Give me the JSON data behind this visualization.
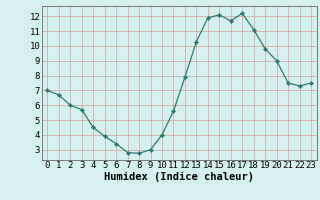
{
  "x": [
    0,
    1,
    2,
    3,
    4,
    5,
    6,
    7,
    8,
    9,
    10,
    11,
    12,
    13,
    14,
    15,
    16,
    17,
    18,
    19,
    20,
    21,
    22,
    23
  ],
  "y": [
    7.0,
    6.7,
    6.0,
    5.7,
    4.5,
    3.9,
    3.4,
    2.8,
    2.75,
    3.0,
    4.0,
    5.6,
    7.9,
    10.3,
    11.9,
    12.1,
    11.7,
    12.2,
    11.1,
    9.8,
    9.0,
    7.5,
    7.3,
    7.5
  ],
  "line_color": "#2d7a6e",
  "marker": "D",
  "marker_size": 2.2,
  "bg_color": "#d6f0f0",
  "grid_color": "#c0d8d8",
  "grid_minor_color": "#e0ecec",
  "xlabel": "Humidex (Indice chaleur)",
  "xlabel_fontsize": 7.5,
  "tick_fontsize": 6.5,
  "xlim": [
    -0.5,
    23.5
  ],
  "ylim": [
    2.3,
    12.7
  ],
  "yticks": [
    3,
    4,
    5,
    6,
    7,
    8,
    9,
    10,
    11,
    12
  ],
  "xticks": [
    0,
    1,
    2,
    3,
    4,
    5,
    6,
    7,
    8,
    9,
    10,
    11,
    12,
    13,
    14,
    15,
    16,
    17,
    18,
    19,
    20,
    21,
    22,
    23
  ]
}
